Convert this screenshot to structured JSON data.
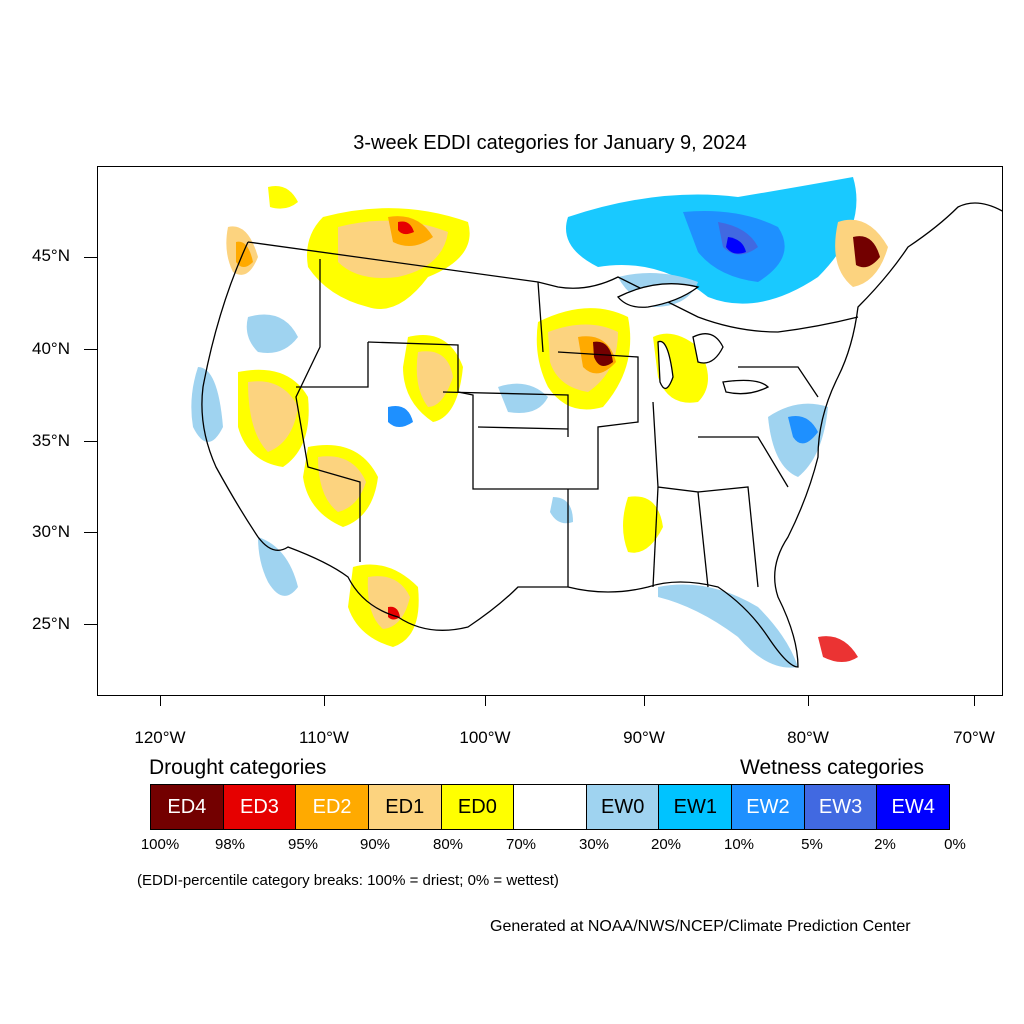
{
  "title": "3-week EDDI categories for January 9, 2024",
  "latitude_labels": [
    "45°N",
    "40°N",
    "35°N",
    "30°N",
    "25°N"
  ],
  "longitude_labels": [
    "120°W",
    "110°W",
    "100°W",
    "90°W",
    "80°W",
    "70°W"
  ],
  "legend": {
    "drought_heading": "Drought categories",
    "wetness_heading": "Wetness categories",
    "categories": [
      {
        "label": "ED4",
        "color": "#730000"
      },
      {
        "label": "ED3",
        "color": "#e60000"
      },
      {
        "label": "ED2",
        "color": "#ffaa00"
      },
      {
        "label": "ED1",
        "color": "#fcd37f"
      },
      {
        "label": "ED0",
        "color": "#ffff00"
      },
      {
        "label": "",
        "color": "#ffffff"
      },
      {
        "label": "EW0",
        "color": "#9fd3f0"
      },
      {
        "label": "EW1",
        "color": "#00c3ff"
      },
      {
        "label": "EW2",
        "color": "#1e90ff"
      },
      {
        "label": "EW3",
        "color": "#4169e1"
      },
      {
        "label": "EW4",
        "color": "#0000ff"
      }
    ],
    "breaks": [
      "100%",
      "98%",
      "95%",
      "90%",
      "80%",
      "70%",
      "30%",
      "20%",
      "10%",
      "5%",
      "2%",
      "0%"
    ],
    "note": "(EDDI-percentile category breaks: 100% = driest; 0% = wettest)"
  },
  "credit": "Generated at NOAA/NWS/NCEP/Climate Prediction Center"
}
